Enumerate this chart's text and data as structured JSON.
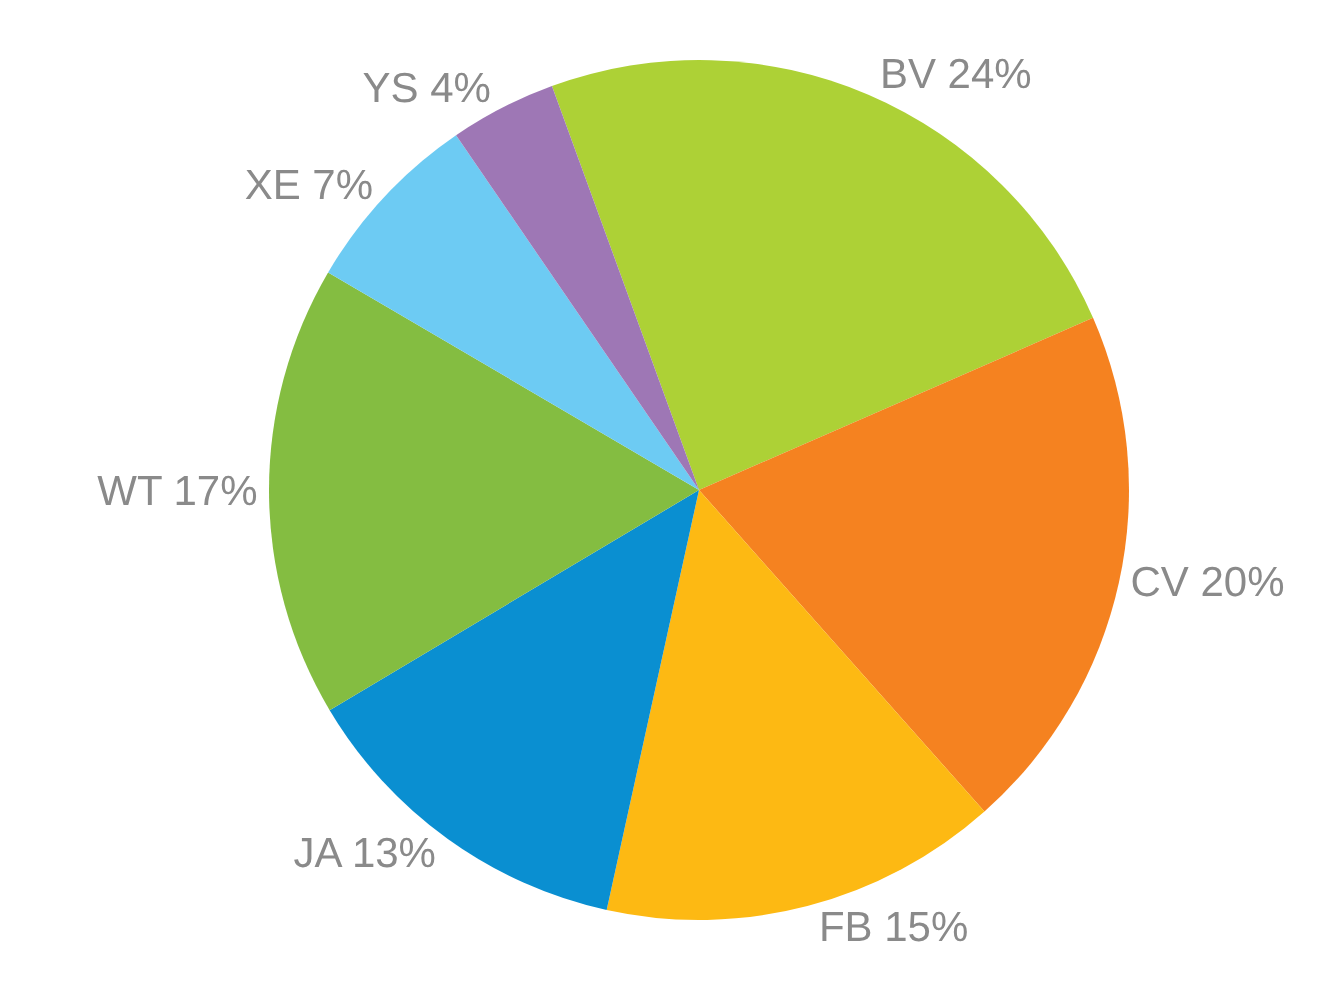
{
  "chart_data": {
    "type": "pie",
    "categories": [
      "BV",
      "CV",
      "FB",
      "JA",
      "WT",
      "XE",
      "YS"
    ],
    "values": [
      24,
      20,
      15,
      13,
      17,
      7,
      4
    ],
    "value_labels": [
      "24%",
      "20%",
      "15%",
      "13%",
      "17%",
      "7%",
      "4%"
    ],
    "colors": [
      "#add136",
      "#f58220",
      "#fdb913",
      "#0a8fd1",
      "#84bd41",
      "#6dcbf3",
      "#9e77b5"
    ],
    "legend": false
  }
}
